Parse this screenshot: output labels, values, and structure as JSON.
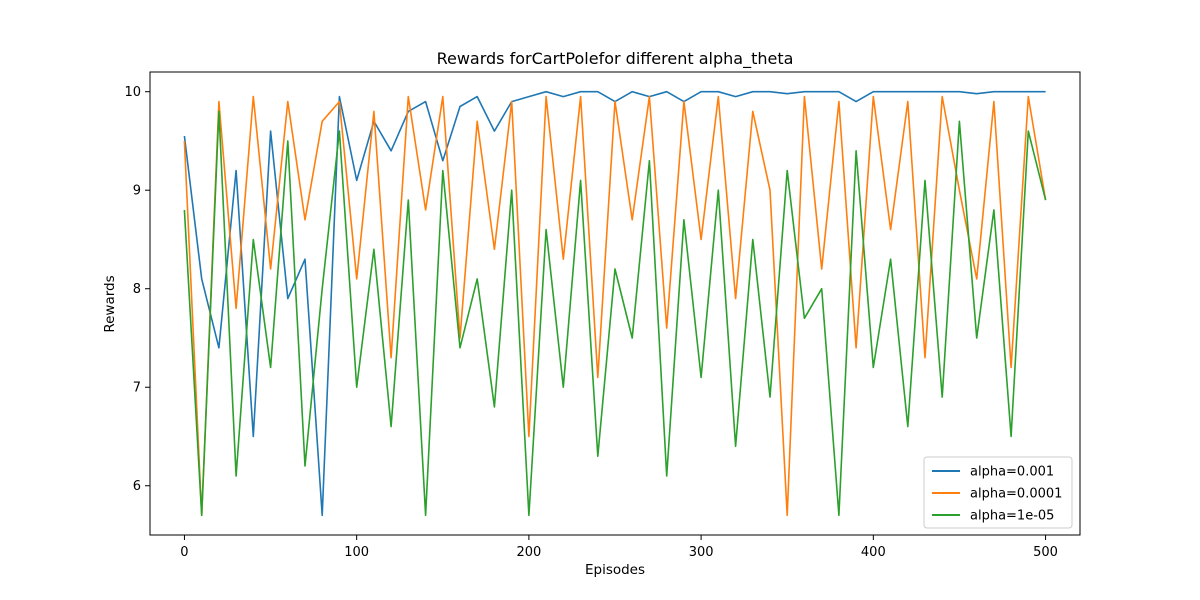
{
  "chart_data": {
    "type": "line",
    "title": "Rewards forCartPolefor different alpha_theta",
    "xlabel": "Episodes",
    "ylabel": "Rewards",
    "xlim": [
      -20,
      520
    ],
    "ylim": [
      5.5,
      10.2
    ],
    "x_ticks": [
      0,
      100,
      200,
      300,
      400,
      500
    ],
    "y_ticks": [
      6,
      7,
      8,
      9,
      10
    ],
    "grid": false,
    "legend_position": "lower-right",
    "x": [
      0,
      10,
      20,
      30,
      40,
      50,
      60,
      70,
      80,
      90,
      100,
      110,
      120,
      130,
      140,
      150,
      160,
      170,
      180,
      190,
      200,
      210,
      220,
      230,
      240,
      250,
      260,
      270,
      280,
      290,
      300,
      310,
      320,
      330,
      340,
      350,
      360,
      370,
      380,
      390,
      400,
      410,
      420,
      430,
      440,
      450,
      460,
      470,
      480,
      490,
      500
    ],
    "series": [
      {
        "name": "alpha=0.001",
        "color": "#1f77b4",
        "values": [
          9.55,
          8.1,
          7.4,
          9.2,
          6.5,
          9.6,
          7.9,
          8.3,
          5.7,
          9.95,
          9.1,
          9.7,
          9.4,
          9.8,
          9.9,
          9.3,
          9.85,
          9.95,
          9.6,
          9.9,
          9.95,
          10.0,
          9.95,
          10.0,
          10.0,
          9.9,
          10.0,
          9.95,
          10.0,
          9.9,
          10.0,
          10.0,
          9.95,
          10.0,
          10.0,
          9.98,
          10.0,
          10.0,
          10.0,
          9.9,
          10.0,
          10.0,
          10.0,
          10.0,
          10.0,
          10.0,
          9.98,
          10.0,
          10.0,
          10.0,
          10.0
        ]
      },
      {
        "name": "alpha=0.0001",
        "color": "#ff7f0e",
        "values": [
          9.5,
          5.7,
          9.9,
          7.8,
          9.95,
          8.2,
          9.9,
          8.7,
          9.7,
          9.9,
          8.1,
          9.8,
          7.3,
          9.95,
          8.8,
          9.95,
          7.5,
          9.7,
          8.4,
          9.9,
          6.5,
          9.95,
          8.3,
          9.95,
          7.1,
          9.9,
          8.7,
          9.95,
          7.6,
          9.9,
          8.5,
          9.95,
          7.9,
          9.8,
          9.0,
          5.7,
          9.95,
          8.2,
          9.9,
          7.4,
          9.95,
          8.6,
          9.9,
          7.3,
          9.95,
          9.0,
          8.1,
          9.9,
          7.2,
          9.95,
          8.9
        ]
      },
      {
        "name": "alpha=1e-05",
        "color": "#2ca02c",
        "values": [
          8.8,
          5.7,
          9.8,
          6.1,
          8.5,
          7.2,
          9.5,
          6.2,
          8.0,
          9.6,
          7.0,
          8.4,
          6.6,
          8.9,
          5.7,
          9.2,
          7.4,
          8.1,
          6.8,
          9.0,
          5.7,
          8.6,
          7.0,
          9.1,
          6.3,
          8.2,
          7.5,
          9.3,
          6.1,
          8.7,
          7.1,
          9.0,
          6.4,
          8.5,
          6.9,
          9.2,
          7.7,
          8.0,
          5.7,
          9.4,
          7.2,
          8.3,
          6.6,
          9.1,
          6.9,
          9.7,
          7.5,
          8.8,
          6.5,
          9.6,
          8.9
        ]
      }
    ]
  }
}
